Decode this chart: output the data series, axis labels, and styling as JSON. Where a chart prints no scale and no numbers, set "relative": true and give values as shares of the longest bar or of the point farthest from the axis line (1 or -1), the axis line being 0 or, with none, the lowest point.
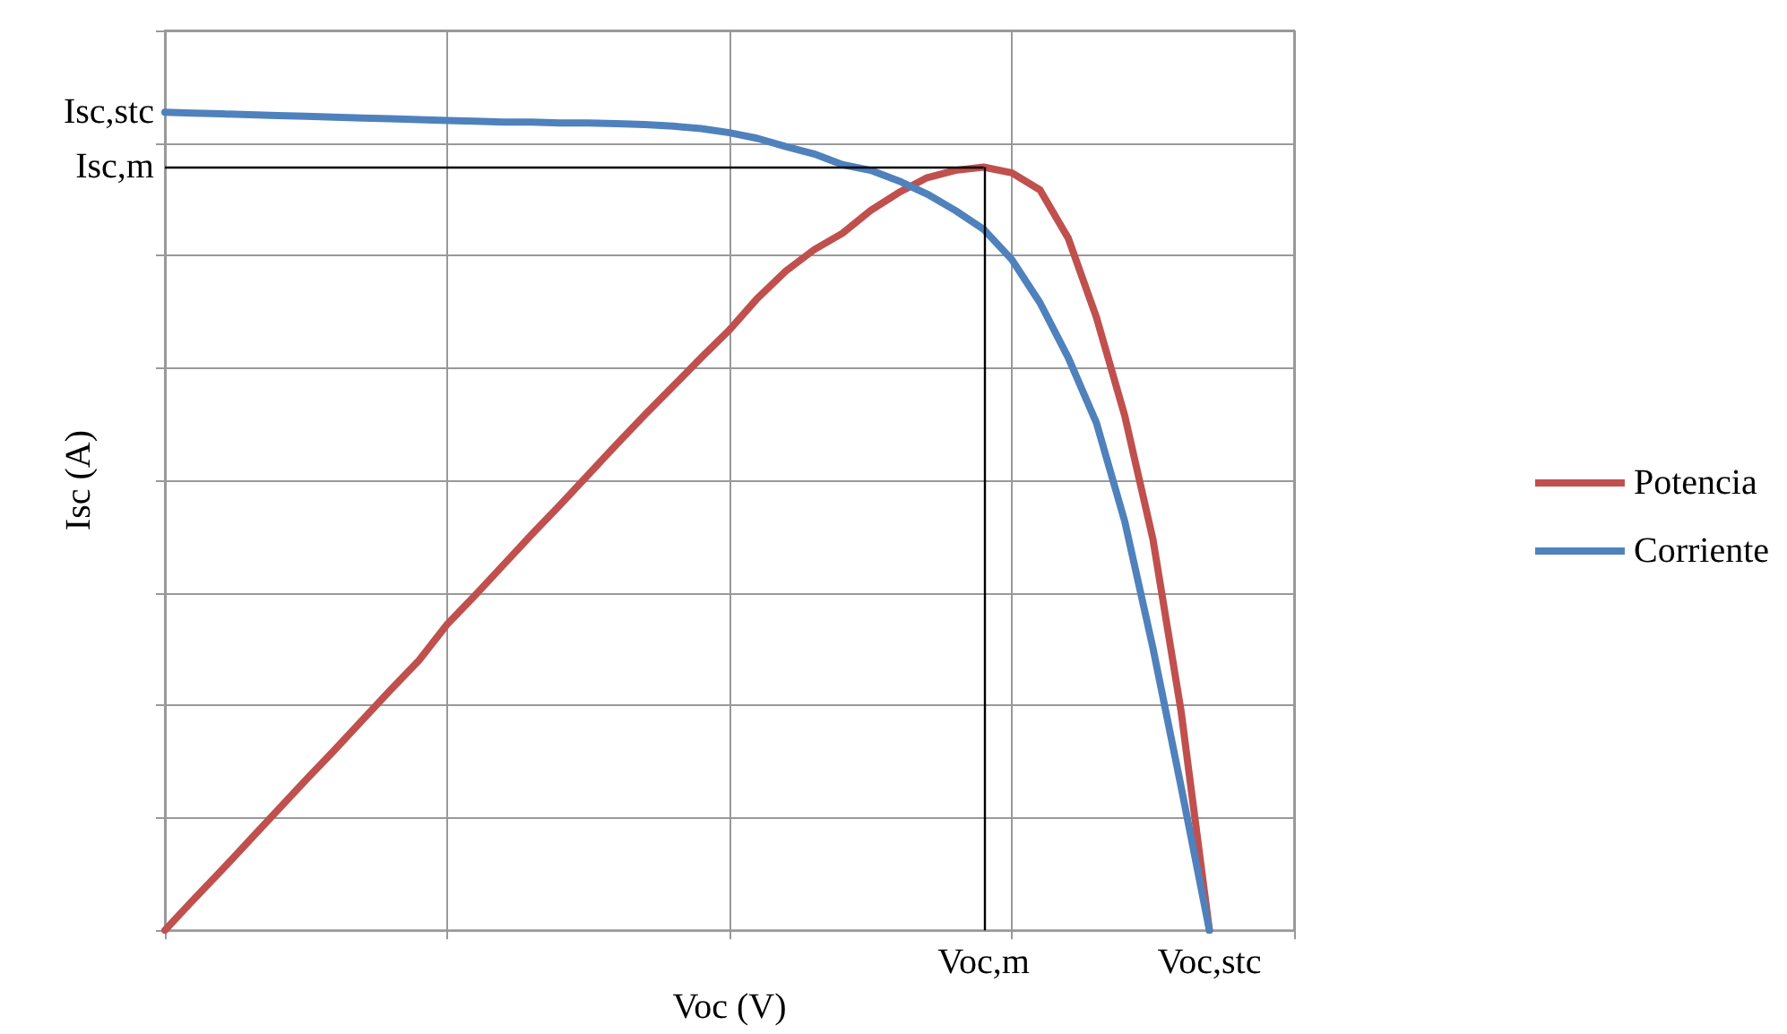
{
  "chart_data": {
    "type": "line",
    "xlabel": "Voc (V)",
    "ylabel": "Isc (A)",
    "relative": true,
    "categories": [
      null,
      null,
      null,
      null,
      null,
      null,
      null,
      null,
      null,
      null,
      null,
      null,
      null,
      null,
      null,
      null,
      null,
      null,
      null,
      null,
      null,
      null,
      null,
      null,
      null,
      null,
      null,
      null,
      null,
      "Voc,m",
      null,
      null,
      null,
      null,
      null,
      null,
      null,
      "Voc,stc",
      null,
      null,
      null
    ],
    "series": [
      {
        "name": "Potencia",
        "color": "#c0504d",
        "values": [
          0,
          0.037,
          0.073,
          0.11,
          0.147,
          0.184,
          0.22,
          0.257,
          0.294,
          0.33,
          0.374,
          0.41,
          0.447,
          0.484,
          0.52,
          0.557,
          0.594,
          0.63,
          0.665,
          0.7,
          0.734,
          0.773,
          0.806,
          0.832,
          0.852,
          0.88,
          0.902,
          0.92,
          0.929,
          0.933,
          0.926,
          0.905,
          0.846,
          0.749,
          0.629,
          0.478,
          0.267,
          0,
          null,
          null,
          null
        ]
      },
      {
        "name": "Corriente",
        "color": "#4f81bd",
        "values": [
          1,
          0.999,
          0.998,
          0.997,
          0.996,
          0.995,
          0.994,
          0.993,
          0.992,
          0.991,
          0.99,
          0.989,
          0.988,
          0.988,
          0.987,
          0.987,
          0.986,
          0.985,
          0.983,
          0.98,
          0.975,
          0.968,
          0.958,
          0.949,
          0.936,
          0.929,
          0.916,
          0.9,
          0.88,
          0.857,
          0.82,
          0.767,
          0.7,
          0.62,
          0.5,
          0.345,
          0.175,
          0,
          null,
          null,
          null
        ]
      }
    ],
    "ref_lines": [
      {
        "axis": "y",
        "value": 0.933,
        "label": "Isc,m",
        "color": "#000000"
      },
      {
        "axis": "x",
        "value": "Voc,m",
        "color": "#000000"
      }
    ],
    "annotations": [
      "Isc,stc"
    ],
    "grid": true,
    "legend": "right",
    "marker": "none",
    "line_style": "solid"
  }
}
